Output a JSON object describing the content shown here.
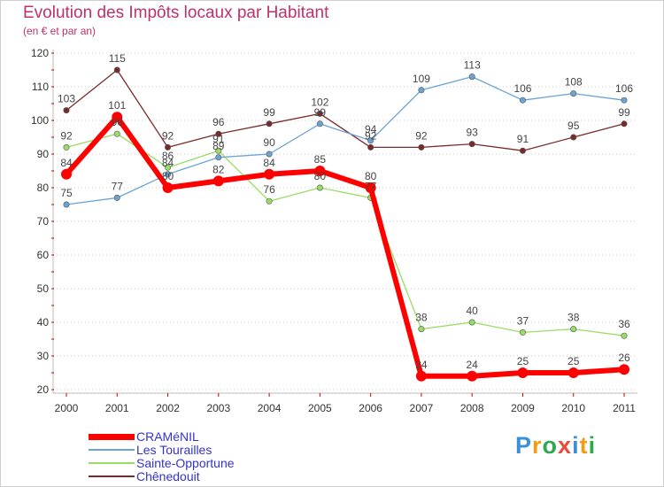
{
  "title": "Evolution des Impôts locaux par Habitant",
  "subtitle": "(en € et par an)",
  "brand": "Proxiti",
  "chart_data": {
    "type": "line",
    "title": "Evolution des Impôts locaux par Habitant",
    "subtitle": "(en € et par an)",
    "xlabel": "",
    "ylabel": "",
    "ylim": [
      20,
      120
    ],
    "yticks": [
      20,
      30,
      40,
      50,
      60,
      70,
      80,
      90,
      100,
      110,
      120
    ],
    "grid": "horizontal-dashed",
    "legend_position": "bottom-left",
    "categories": [
      "2000",
      "2001",
      "2002",
      "2003",
      "2004",
      "2005",
      "2006",
      "2007",
      "2008",
      "2009",
      "2010",
      "2011"
    ],
    "series": [
      {
        "name": "CRAMéNIL",
        "color": "#ff0000",
        "values": [
          84,
          101,
          80,
          82,
          84,
          85,
          80,
          24,
          24,
          25,
          25,
          26
        ]
      },
      {
        "name": "Les Tourailles",
        "color": "#6aa3d5",
        "values": [
          75,
          77,
          84,
          89,
          90,
          99,
          94,
          109,
          113,
          106,
          108,
          106
        ]
      },
      {
        "name": "Sainte-Opportune",
        "color": "#99dd66",
        "values": [
          92,
          96,
          86,
          91,
          76,
          80,
          77,
          38,
          40,
          37,
          38,
          36
        ]
      },
      {
        "name": "Chênedouit",
        "color": "#7a2a2a",
        "values": [
          103,
          115,
          92,
          96,
          99,
          102,
          92,
          92,
          93,
          91,
          95,
          99
        ]
      }
    ]
  }
}
